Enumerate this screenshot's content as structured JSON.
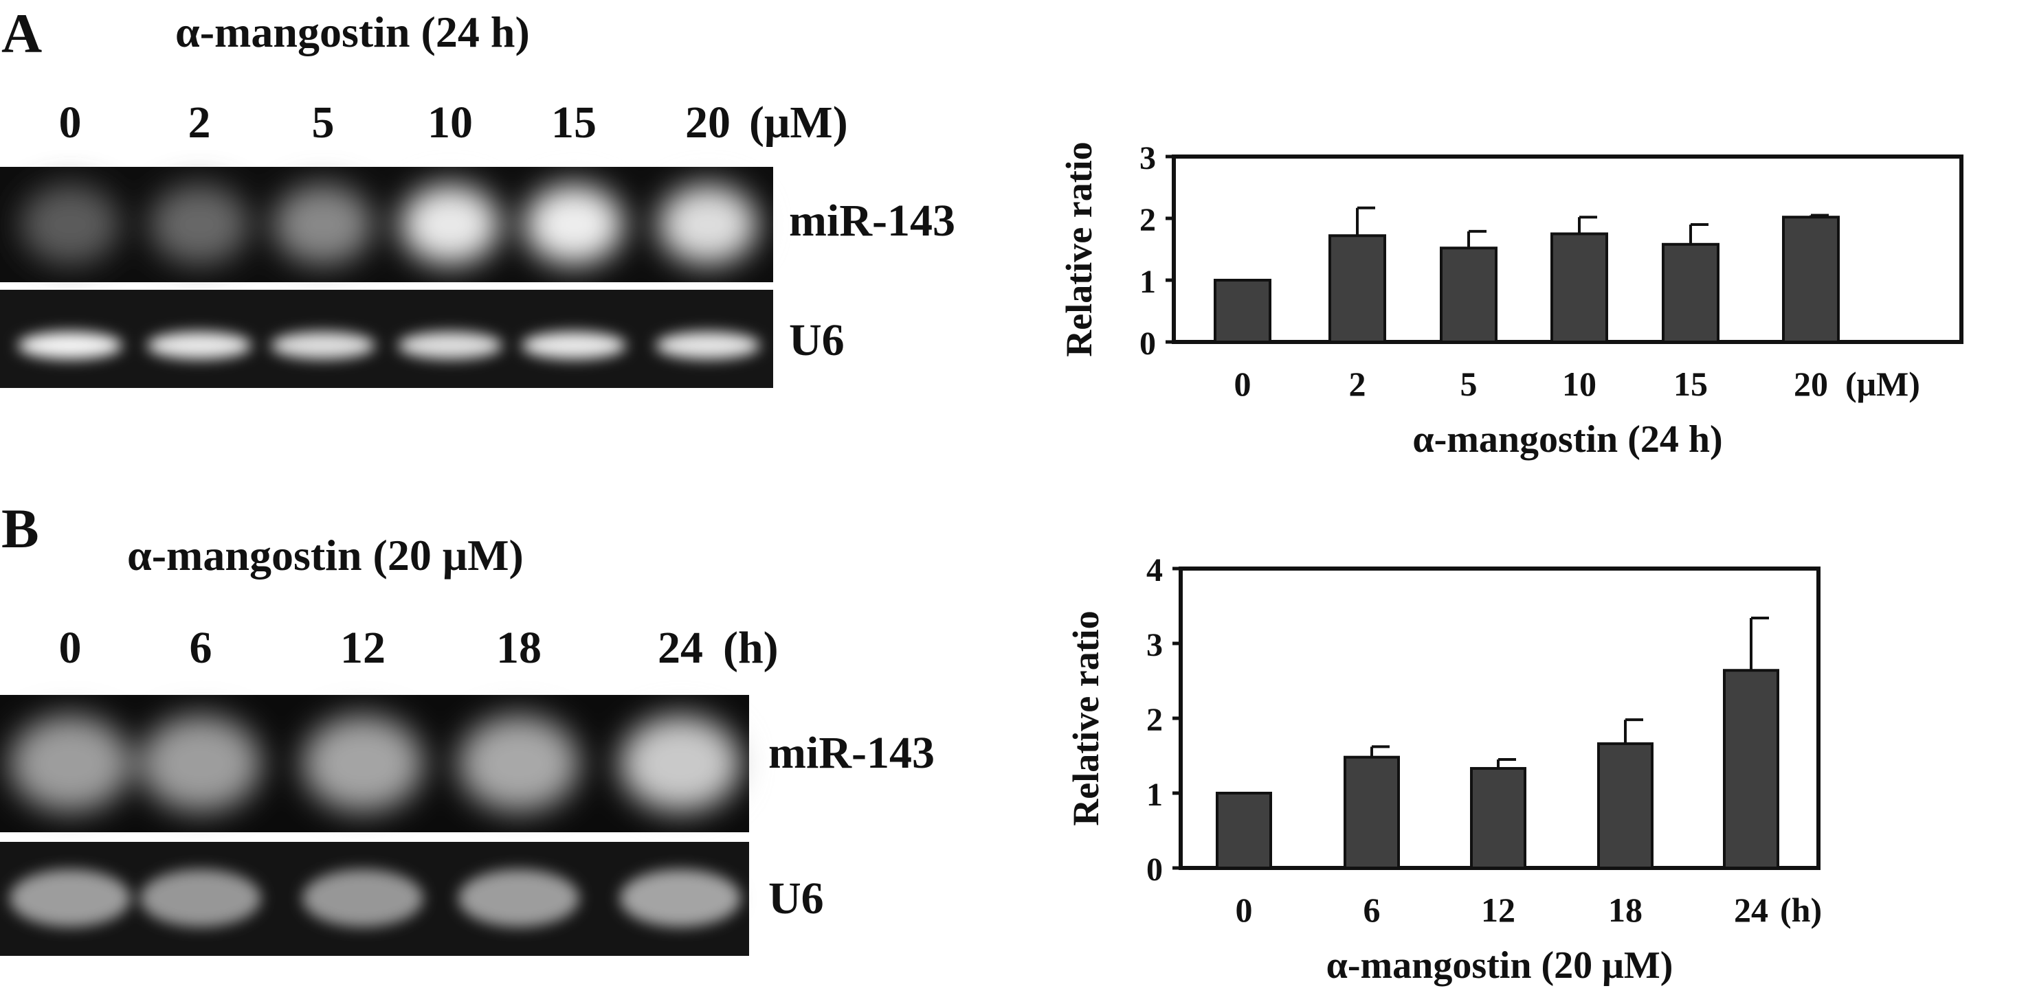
{
  "panels": [
    {
      "letter": "A",
      "treatment_title": "α-mangostin (24 h)",
      "lane_labels": [
        "0",
        "2",
        "5",
        "10",
        "15",
        "20"
      ],
      "lane_unit": "(μM)",
      "band_labels": [
        "miR-143",
        "U6"
      ],
      "mir_intensity": [
        0.25,
        0.3,
        0.45,
        0.9,
        0.92,
        0.85
      ],
      "u6_intensity": [
        0.95,
        0.9,
        0.85,
        0.85,
        0.9,
        0.88
      ],
      "chart_data": {
        "type": "bar",
        "categories": [
          "0",
          "2",
          "5",
          "10",
          "15",
          "20"
        ],
        "x_unit": "(μM)",
        "values": [
          1.0,
          1.72,
          1.52,
          1.75,
          1.58,
          2.02
        ],
        "errors": [
          0.0,
          0.45,
          0.27,
          0.27,
          0.32,
          0.03
        ],
        "xlabel": "α-mangostin (24 h)",
        "ylabel": "Relative ratio",
        "ylim": [
          0,
          3
        ],
        "yticks": [
          "0",
          "1",
          "2",
          "3"
        ],
        "bar_color": "#404040",
        "grid": false
      }
    },
    {
      "letter": "B",
      "treatment_title": "α-mangostin (20 μM)",
      "lane_labels": [
        "0",
        "6",
        "12",
        "18",
        "24"
      ],
      "lane_unit": "(h)",
      "band_labels": [
        "miR-143",
        "U6"
      ],
      "mir_intensity": [
        0.55,
        0.55,
        0.58,
        0.6,
        0.75
      ],
      "u6_intensity": [
        0.55,
        0.52,
        0.52,
        0.55,
        0.58
      ],
      "chart_data": {
        "type": "bar",
        "categories": [
          "0",
          "6",
          "12",
          "18",
          "24"
        ],
        "x_unit": "(h)",
        "values": [
          1.0,
          1.48,
          1.33,
          1.66,
          2.64
        ],
        "errors": [
          0.0,
          0.14,
          0.12,
          0.32,
          0.7
        ],
        "xlabel": "α-mangostin (20 μM)",
        "ylabel": "Relative ratio",
        "ylim": [
          0,
          4
        ],
        "yticks": [
          "0",
          "1",
          "2",
          "3",
          "4"
        ],
        "bar_color": "#404040",
        "grid": false
      }
    }
  ]
}
